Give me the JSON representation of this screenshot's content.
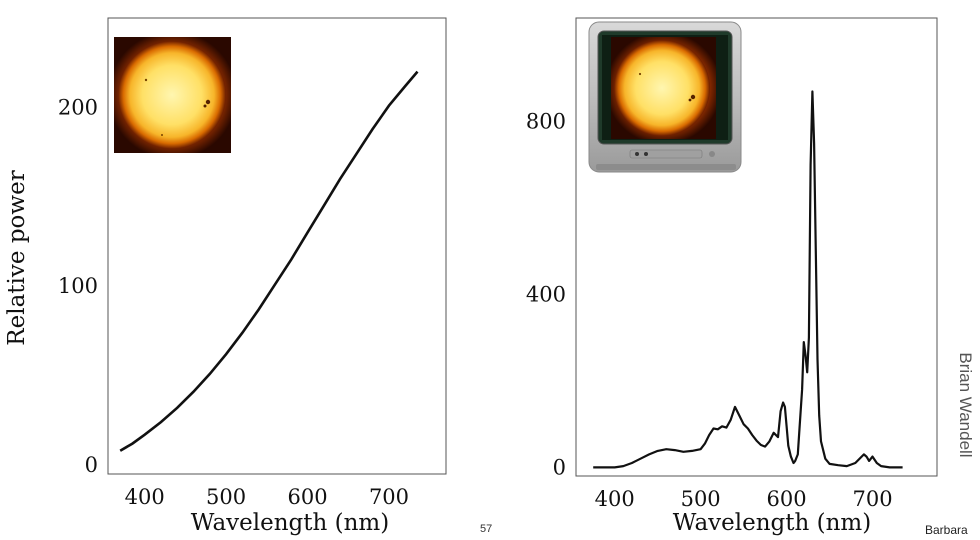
{
  "chart_data": [
    {
      "type": "line",
      "ylabel": "Relative power",
      "xlabel": "Wavelength (nm)",
      "x_ticks": [
        "400",
        "500",
        "600",
        "700"
      ],
      "y_ticks": [
        "0",
        "100",
        "200"
      ],
      "xlim": [
        355,
        770
      ],
      "ylim": [
        -5,
        250
      ],
      "series": [
        {
          "x": [
            370,
            385,
            400,
            420,
            440,
            460,
            480,
            500,
            520,
            540,
            560,
            580,
            600,
            620,
            640,
            660,
            680,
            700,
            720,
            735
          ],
          "values": [
            8,
            12,
            17,
            24,
            32,
            41,
            51,
            62,
            74,
            87,
            101,
            115,
            130,
            145,
            160,
            174,
            188,
            201,
            212,
            220
          ]
        }
      ],
      "inset": "sun-photo"
    },
    {
      "type": "line",
      "ylabel": "",
      "xlabel": "Wavelength (nm)",
      "x_ticks": [
        "400",
        "500",
        "600",
        "700"
      ],
      "y_ticks": [
        "0",
        "400",
        "800"
      ],
      "xlim": [
        355,
        775
      ],
      "ylim": [
        -20,
        1040
      ],
      "series": [
        {
          "x": [
            375,
            390,
            400,
            410,
            420,
            430,
            440,
            450,
            460,
            470,
            480,
            490,
            500,
            505,
            510,
            515,
            520,
            525,
            530,
            535,
            540,
            545,
            550,
            555,
            560,
            565,
            570,
            575,
            580,
            585,
            590,
            593,
            596,
            598,
            600,
            602,
            605,
            608,
            610,
            613,
            615,
            618,
            620,
            622,
            624,
            626,
            628,
            630,
            632,
            634,
            636,
            638,
            640,
            645,
            650,
            660,
            670,
            680,
            690,
            693,
            696,
            700,
            705,
            710,
            720,
            735
          ],
          "values": [
            0,
            0,
            0,
            3,
            10,
            20,
            30,
            38,
            42,
            40,
            36,
            38,
            42,
            55,
            75,
            90,
            88,
            95,
            92,
            110,
            140,
            120,
            100,
            90,
            75,
            62,
            52,
            48,
            60,
            80,
            70,
            130,
            150,
            140,
            95,
            50,
            25,
            10,
            15,
            30,
            90,
            180,
            290,
            260,
            220,
            300,
            700,
            870,
            750,
            500,
            250,
            120,
            60,
            20,
            8,
            5,
            3,
            10,
            30,
            25,
            15,
            25,
            10,
            3,
            0,
            0
          ]
        }
      ],
      "inset": "television-with-sun-photo"
    }
  ],
  "page_number": "57",
  "credit_name": "Brian Wandell",
  "credit_bottom": "Barbara",
  "colors": {
    "line": "#111111",
    "frame": "#555555"
  }
}
